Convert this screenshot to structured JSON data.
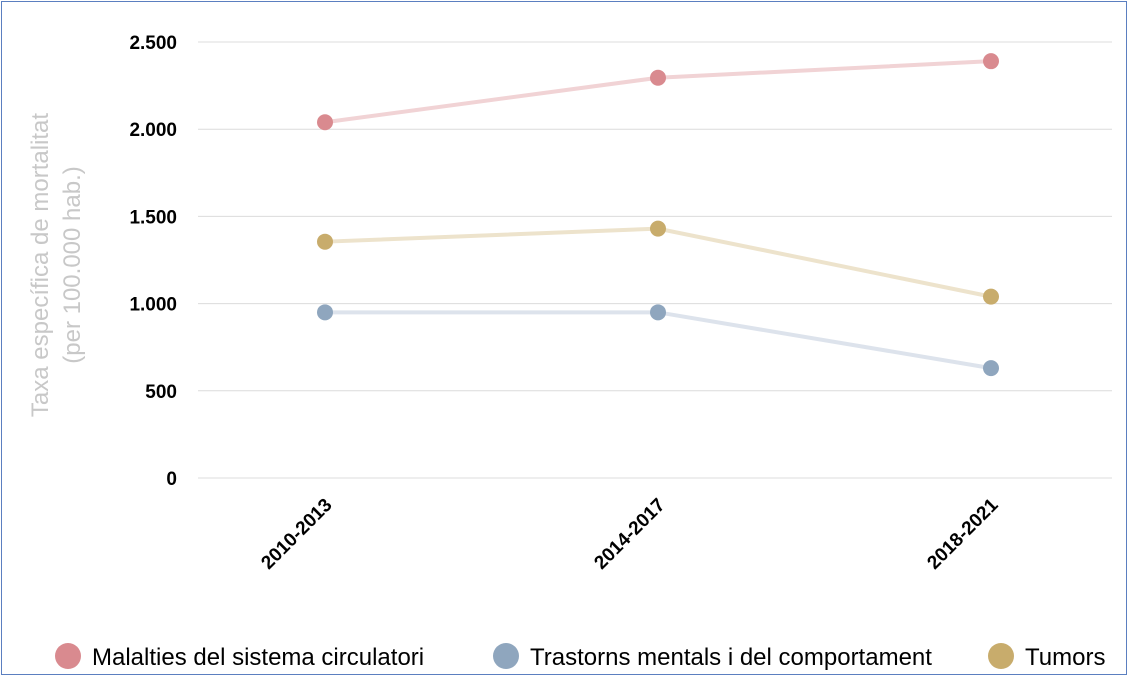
{
  "chart_data": {
    "type": "line",
    "title": "",
    "ylabel_line1": "Taxa específica de mortalitat",
    "ylabel_line2": "(per 100.000 hab.)",
    "xlabel": "",
    "categories": [
      "2010-2013",
      "2014-2017",
      "2018-2021"
    ],
    "ylim": [
      0,
      2500
    ],
    "yticks": [
      0,
      500,
      1000,
      1500,
      2000,
      2500
    ],
    "ytick_labels": [
      "0",
      "500",
      "1.000",
      "1.500",
      "2.000",
      "2.500"
    ],
    "grid": true,
    "legend_position": "bottom",
    "series": [
      {
        "name": "Malalties del sistema circulatori",
        "values": [
          2040,
          2295,
          2390
        ],
        "color": "#d98a8f",
        "line_color": "#f1d3d5"
      },
      {
        "name": "Trastorns mentals i del comportament",
        "values": [
          950,
          950,
          630
        ],
        "color": "#8fa6be",
        "line_color": "#dde3ec"
      },
      {
        "name": "Tumors",
        "values": [
          1355,
          1430,
          1040
        ],
        "color": "#c8ac6c",
        "line_color": "#ede3cc"
      }
    ]
  }
}
